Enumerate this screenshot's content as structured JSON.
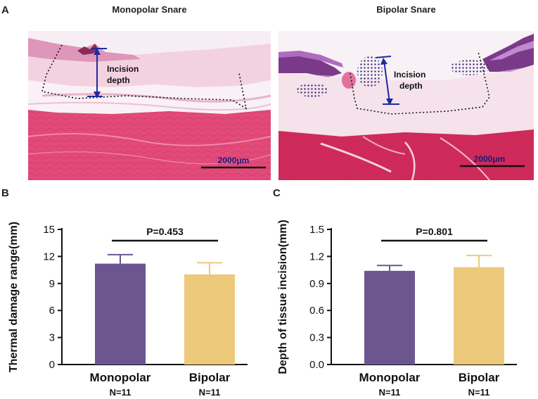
{
  "panels": {
    "a": {
      "letter": "A",
      "left_title": "Monopolar Snare",
      "right_title": "Bipolar Snare",
      "incision_label_line1": "Incision",
      "incision_label_line2": "depth",
      "scale_bar_label": "2000μm"
    },
    "b": {
      "letter": "B"
    },
    "c": {
      "letter": "C"
    }
  },
  "colors": {
    "monopolar": "#6b5690",
    "bipolar": "#edc97c",
    "tissue_pink": "#e24a7a",
    "tissue_light": "#f3d2e0",
    "epithelium": "#5a3a8a",
    "arrow": "#1f2aa0"
  },
  "chart_data": [
    {
      "type": "bar",
      "ylabel": "Thermal damage range(mm)",
      "categories": [
        "Monopolar",
        "Bipolar"
      ],
      "sample_sizes": [
        "N=11",
        "N=11"
      ],
      "values": [
        11.2,
        10.0
      ],
      "errors": [
        1.0,
        1.3
      ],
      "ylim": [
        0,
        15
      ],
      "yticks": [
        "0",
        "3",
        "6",
        "9",
        "12",
        "15"
      ],
      "annotation": "P=0.453",
      "grid": false
    },
    {
      "type": "bar",
      "ylabel": "Depth of tissue incision(mm)",
      "categories": [
        "Monopolar",
        "Bipolar"
      ],
      "sample_sizes": [
        "N=11",
        "N=11"
      ],
      "values": [
        1.04,
        1.08
      ],
      "errors": [
        0.06,
        0.13
      ],
      "ylim": [
        0,
        1.5
      ],
      "yticks": [
        "0.0",
        "0.3",
        "0.6",
        "0.9",
        "1.2",
        "1.5"
      ],
      "annotation": "P=0.801",
      "grid": false
    }
  ]
}
